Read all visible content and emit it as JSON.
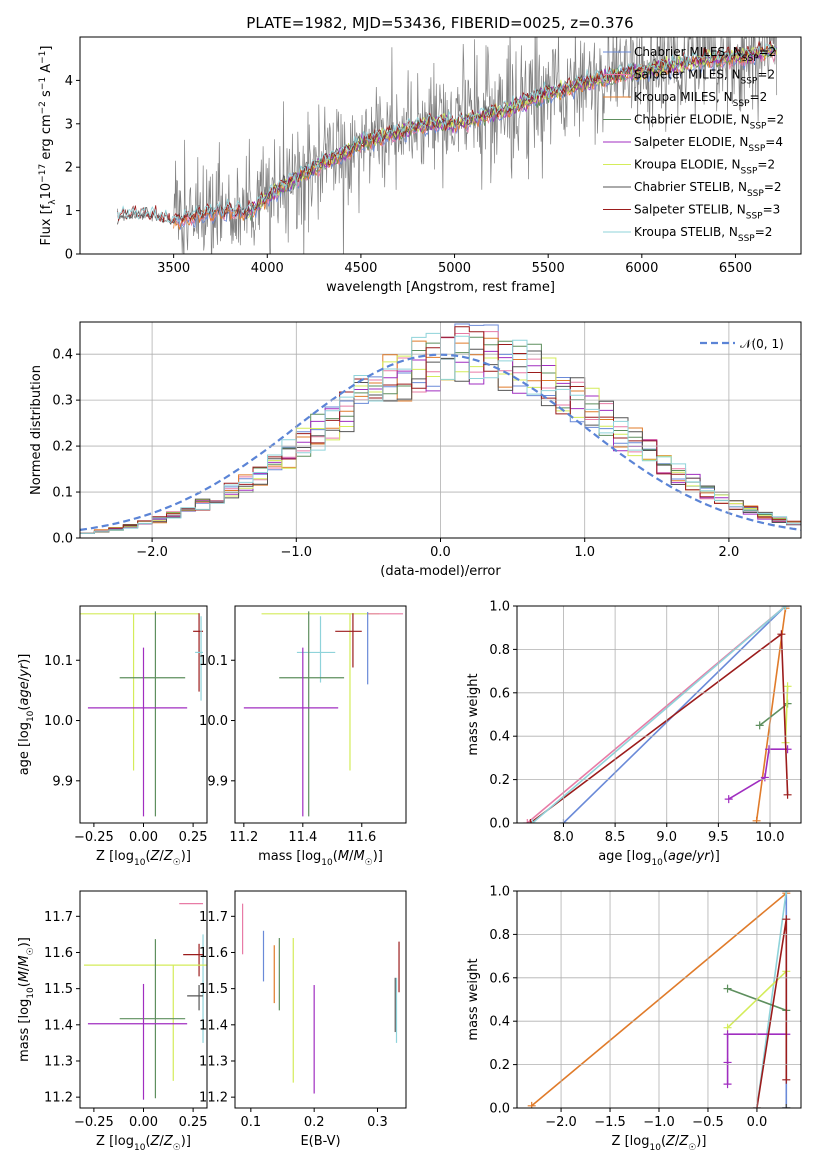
{
  "figure_title": "PLATE=1982, MJD=53436, FIBERID=0025, z=0.376",
  "colors": {
    "Chabrier MILES": "#6a8ad8",
    "Salpeter MILES": "#e87ba6",
    "Kroupa MILES": "#e07b2a",
    "Chabrier ELODIE": "#5e8f5e",
    "Salpeter ELODIE": "#a02ec0",
    "Kroupa ELODIE": "#d4ec5a",
    "Chabrier STELIB": "#555555",
    "Salpeter STELIB": "#9b1c1c",
    "Kroupa STELIB": "#8fd3da",
    "data": "#808080",
    "gaussian": "#5b84d6"
  },
  "chart_data": [
    {
      "id": "spectrum",
      "type": "line",
      "title": "PLATE=1982, MJD=53436, FIBERID=0025, z=0.376",
      "xlabel": "wavelength [Angstrom, rest frame]",
      "ylabel": "Flux [fλ10⁻¹⁷ erg cm⁻² s⁻¹ A⁻¹]",
      "xlim": [
        3000,
        6850
      ],
      "ylim": [
        0,
        5
      ],
      "xticks": [
        3500,
        4000,
        4500,
        5000,
        5500,
        6000,
        6500
      ],
      "yticks": [
        0,
        1,
        2,
        3,
        4
      ],
      "continuum_x": [
        3200,
        3300,
        3400,
        3500,
        3600,
        3700,
        3800,
        3900,
        4000,
        4100,
        4200,
        4300,
        4400,
        4500,
        4600,
        4700,
        4800,
        4900,
        5000,
        5100,
        5200,
        5300,
        5400,
        5500,
        5600,
        5700,
        5800,
        5900,
        6000,
        6100,
        6200,
        6300,
        6400,
        6500,
        6600,
        6700
      ],
      "continuum_y": [
        0.85,
        0.9,
        0.85,
        0.75,
        0.85,
        0.95,
        1.0,
        0.95,
        1.3,
        1.6,
        1.85,
        2.1,
        2.3,
        2.55,
        2.7,
        2.8,
        2.95,
        3.0,
        3.0,
        3.1,
        3.25,
        3.35,
        3.55,
        3.7,
        3.8,
        3.95,
        4.05,
        4.15,
        4.2,
        4.3,
        4.35,
        4.45,
        4.5,
        4.55,
        4.6,
        4.7
      ],
      "legend": [
        "Chabrier MILES, N_SSP=2",
        "Salpeter MILES, N_SSP=2",
        "Kroupa MILES, N_SSP=2",
        "Chabrier ELODIE, N_SSP=2",
        "Salpeter ELODIE, N_SSP=4",
        "Kroupa ELODIE, N_SSP=2",
        "Chabrier STELIB, N_SSP=2",
        "Salpeter STELIB, N_SSP=3",
        "Kroupa STELIB, N_SSP=2"
      ],
      "legend_sub": [
        "Chabrier MILES, N",
        "Salpeter MILES, N",
        "Kroupa MILES, N",
        "Chabrier ELODIE, N",
        "Salpeter ELODIE, N",
        "Kroupa ELODIE, N",
        "Chabrier STELIB, N",
        "Salpeter STELIB, N",
        "Kroupa STELIB, N"
      ],
      "legend_nssp": [
        "=2",
        "=2",
        "=2",
        "=2",
        "=4",
        "=2",
        "=2",
        "=3",
        "=2"
      ],
      "legend_placement": "top-right"
    },
    {
      "id": "residuals",
      "type": "histogram",
      "xlabel": "(data-model)/error",
      "ylabel": "Normed distribution",
      "xlim": [
        -2.5,
        2.5
      ],
      "ylim": [
        0,
        0.47
      ],
      "xticks": [
        -2,
        -1,
        0,
        1,
        2
      ],
      "yticks": [
        0.0,
        0.1,
        0.2,
        0.3,
        0.4
      ],
      "bin_width": 0.1,
      "legend_label": "𝒩(0, 1)",
      "legend_placement": "top-right",
      "grid": true
    },
    {
      "id": "age-vs-Z",
      "type": "errorbar",
      "xlabel": "Z [log₁₀(Z/Z☉)]",
      "ylabel": "age  [log₁₀(age/yr)]",
      "xlim": [
        -0.32,
        0.32
      ],
      "ylim": [
        9.83,
        10.19
      ],
      "xticks": [
        -0.25,
        0.0,
        0.25
      ],
      "yticks": [
        9.9,
        10.0,
        10.1
      ],
      "points": [
        {
          "model": "Kroupa ELODIE",
          "x": -0.05,
          "xerr": [
            0.28,
            0.33
          ],
          "y": 10.177,
          "yerr": [
            0.26,
            0.0
          ]
        },
        {
          "model": "Salpeter STELIB",
          "x": 0.28,
          "xerr": [
            0.03,
            0.02
          ],
          "y": 10.148,
          "yerr": [
            0.1,
            0.03
          ]
        },
        {
          "model": "Kroupa STELIB",
          "x": 0.29,
          "xerr": [
            0.03,
            0.01
          ],
          "y": 10.113,
          "yerr": [
            0.08,
            0.06
          ]
        },
        {
          "model": "Chabrier ELODIE",
          "x": 0.06,
          "xerr": [
            0.18,
            0.15
          ],
          "y": 10.071,
          "yerr": [
            0.23,
            0.11
          ]
        },
        {
          "model": "Salpeter ELODIE",
          "x": 0.0,
          "xerr": [
            0.28,
            0.22
          ],
          "y": 10.021,
          "yerr": [
            0.18,
            0.1
          ]
        }
      ]
    },
    {
      "id": "age-vs-mass",
      "type": "errorbar",
      "xlabel": "mass [log₁₀(M/M☉)]",
      "ylabel": "",
      "xlim": [
        11.17,
        11.75
      ],
      "ylim": [
        9.83,
        10.19
      ],
      "xticks": [
        11.2,
        11.4,
        11.6
      ],
      "yticks": [
        9.9,
        10.0,
        10.1
      ],
      "points": [
        {
          "model": "Kroupa ELODIE",
          "x": 11.56,
          "xerr": [
            0.3,
            0.1
          ],
          "y": 10.177,
          "yerr": [
            0.26,
            0.0
          ]
        },
        {
          "model": "Salpeter MILES",
          "x": 11.68,
          "xerr": [
            0.06,
            0.06
          ],
          "y": 10.177,
          "yerr": [
            0.0,
            0.0
          ]
        },
        {
          "model": "Salpeter STELIB",
          "x": 11.57,
          "xerr": [
            0.06,
            0.03
          ],
          "y": 10.148,
          "yerr": [
            0.06,
            0.03
          ]
        },
        {
          "model": "Kroupa STELIB",
          "x": 11.46,
          "xerr": [
            0.08,
            0.05
          ],
          "y": 10.113,
          "yerr": [
            0.05,
            0.06
          ]
        },
        {
          "model": "Chabrier ELODIE",
          "x": 11.42,
          "xerr": [
            0.1,
            0.12
          ],
          "y": 10.071,
          "yerr": [
            0.23,
            0.11
          ]
        },
        {
          "model": "Salpeter ELODIE",
          "x": 11.4,
          "xerr": [
            0.2,
            0.12
          ],
          "y": 10.021,
          "yerr": [
            0.18,
            0.1
          ]
        },
        {
          "model": "Chabrier MILES",
          "x": 11.62,
          "xerr": [
            0.0,
            0.0
          ],
          "y": 10.11,
          "yerr": [
            0.05,
            0.07
          ]
        }
      ]
    },
    {
      "id": "weight-vs-age",
      "type": "line",
      "xlabel": "age  [log₁₀(age/yr)]",
      "ylabel": "mass weight",
      "xlim": [
        7.55,
        10.3
      ],
      "ylim": [
        0,
        1
      ],
      "xticks": [
        8.0,
        8.5,
        9.0,
        9.5,
        10.0
      ],
      "yticks": [
        0.0,
        0.2,
        0.4,
        0.6,
        0.8,
        1.0
      ],
      "grid": true,
      "series": [
        {
          "model": "Chabrier MILES",
          "x": [
            8.0,
            10.15
          ],
          "y": [
            0.0,
            1.0
          ]
        },
        {
          "model": "Salpeter MILES",
          "x": [
            7.65,
            10.15
          ],
          "y": [
            0.0,
            1.0
          ]
        },
        {
          "model": "Kroupa MILES",
          "x": [
            9.87,
            10.15
          ],
          "y": [
            0.01,
            0.99
          ]
        },
        {
          "model": "Chabrier ELODIE",
          "x": [
            9.9,
            10.17
          ],
          "y": [
            0.45,
            0.55
          ]
        },
        {
          "model": "Salpeter ELODIE",
          "x": [
            9.6,
            9.95,
            9.99,
            10.17
          ],
          "y": [
            0.11,
            0.21,
            0.34,
            0.34
          ]
        },
        {
          "model": "Kroupa ELODIE",
          "x": [
            10.15,
            10.17
          ],
          "y": [
            0.37,
            0.63
          ]
        },
        {
          "model": "Salpeter STELIB",
          "x": [
            7.68,
            10.11,
            10.17
          ],
          "y": [
            0.0,
            0.87,
            0.13
          ]
        },
        {
          "model": "Kroupa STELIB",
          "x": [
            7.7,
            10.15
          ],
          "y": [
            0.0,
            1.0
          ]
        }
      ]
    },
    {
      "id": "mass-vs-Z",
      "type": "errorbar",
      "xlabel": "Z [log₁₀(Z/Z☉)]",
      "ylabel": "mass [log₁₀(M/M☉)]",
      "xlim": [
        -0.32,
        0.32
      ],
      "ylim": [
        11.17,
        11.77
      ],
      "xticks": [
        -0.25,
        0.0,
        0.25
      ],
      "yticks": [
        11.2,
        11.3,
        11.4,
        11.5,
        11.6,
        11.7
      ],
      "points": [
        {
          "model": "Salpeter MILES",
          "x": 0.3,
          "xerr": [
            0.12,
            0.0
          ],
          "y": 11.735,
          "yerr": [
            0.0,
            0.0
          ]
        },
        {
          "model": "Kroupa STELIB",
          "x": 0.3,
          "xerr": [
            0.0,
            0.0
          ],
          "y": 11.65,
          "yerr": [
            0.3,
            0.0
          ]
        },
        {
          "model": "Salpeter STELIB",
          "x": 0.28,
          "xerr": [
            0.08,
            0.02
          ],
          "y": 11.594,
          "yerr": [
            0.06,
            0.03
          ]
        },
        {
          "model": "Kroupa ELODIE",
          "x": 0.15,
          "xerr": [
            0.45,
            0.17
          ],
          "y": 11.565,
          "yerr": [
            0.32,
            0.0
          ]
        },
        {
          "model": "Chabrier STELIB",
          "x": 0.28,
          "xerr": [
            0.06,
            0.02
          ],
          "y": 11.48,
          "yerr": [
            0.04,
            0.03
          ]
        },
        {
          "model": "Chabrier ELODIE",
          "x": 0.06,
          "xerr": [
            0.18,
            0.15
          ],
          "y": 11.417,
          "yerr": [
            0.22,
            0.22
          ]
        },
        {
          "model": "Salpeter ELODIE",
          "x": 0.0,
          "xerr": [
            0.28,
            0.22
          ],
          "y": 11.403,
          "yerr": [
            0.21,
            0.11
          ]
        }
      ]
    },
    {
      "id": "mass-vs-ebv",
      "type": "errorbar",
      "xlabel": "E(B-V)",
      "ylabel": "",
      "xlim": [
        0.075,
        0.345
      ],
      "ylim": [
        11.17,
        11.77
      ],
      "xticks": [
        0.1,
        0.2,
        0.3
      ],
      "yticks": [
        11.2,
        11.3,
        11.4,
        11.5,
        11.6,
        11.7
      ],
      "points": [
        {
          "model": "Salpeter MILES",
          "x": 0.087,
          "y": 11.665,
          "yerr": [
            0.07,
            0.07
          ]
        },
        {
          "model": "Chabrier MILES",
          "x": 0.12,
          "y": 11.59,
          "yerr": [
            0.07,
            0.07
          ]
        },
        {
          "model": "Kroupa MILES",
          "x": 0.137,
          "y": 11.54,
          "yerr": [
            0.08,
            0.08
          ]
        },
        {
          "model": "Chabrier ELODIE",
          "x": 0.145,
          "y": 11.54,
          "yerr": [
            0.1,
            0.1
          ]
        },
        {
          "model": "Kroupa ELODIE",
          "x": 0.167,
          "y": 11.44,
          "yerr": [
            0.2,
            0.2
          ]
        },
        {
          "model": "Salpeter ELODIE",
          "x": 0.2,
          "y": 11.41,
          "yerr": [
            0.2,
            0.1
          ]
        },
        {
          "model": "Salpeter STELIB",
          "x": 0.334,
          "y": 11.56,
          "yerr": [
            0.07,
            0.07
          ]
        },
        {
          "model": "Chabrier STELIB",
          "x": 0.328,
          "y": 11.48,
          "yerr": [
            0.1,
            0.05
          ]
        },
        {
          "model": "Kroupa STELIB",
          "x": 0.33,
          "y": 11.45,
          "yerr": [
            0.1,
            0.08
          ]
        }
      ]
    },
    {
      "id": "weight-vs-Z",
      "type": "line",
      "xlabel": "Z [log₁₀(Z/Z☉)]",
      "ylabel": "mass weight",
      "xlim": [
        -2.45,
        0.45
      ],
      "ylim": [
        0,
        1
      ],
      "xticks": [
        -2.0,
        -1.5,
        -1.0,
        -0.5,
        0.0
      ],
      "yticks": [
        0.0,
        0.2,
        0.4,
        0.6,
        0.8,
        1.0
      ],
      "grid": true,
      "series": [
        {
          "model": "Kroupa MILES",
          "x": [
            -2.3,
            0.3
          ],
          "y": [
            0.01,
            0.99
          ]
        },
        {
          "model": "Chabrier MILES",
          "x": [
            0.3,
            0.3
          ],
          "y": [
            0.0,
            1.0
          ]
        },
        {
          "model": "Kroupa STELIB",
          "x": [
            0.0,
            0.3
          ],
          "y": [
            0.0,
            1.0
          ]
        },
        {
          "model": "Chabrier ELODIE",
          "x": [
            -0.3,
            0.3
          ],
          "y": [
            0.55,
            0.45
          ]
        },
        {
          "model": "Kroupa ELODIE",
          "x": [
            -0.3,
            0.3
          ],
          "y": [
            0.37,
            0.63
          ]
        },
        {
          "model": "Salpeter ELODIE",
          "x": [
            -0.3,
            -0.3,
            -0.3,
            0.3
          ],
          "y": [
            0.11,
            0.21,
            0.34,
            0.34
          ]
        },
        {
          "model": "Salpeter STELIB",
          "x": [
            0.0,
            0.3,
            0.3
          ],
          "y": [
            0.0,
            0.87,
            0.13
          ]
        },
        {
          "model": "Chabrier STELIB",
          "x": [
            0.3,
            0.3
          ],
          "y": [
            0.0,
            0.0
          ]
        }
      ]
    }
  ]
}
